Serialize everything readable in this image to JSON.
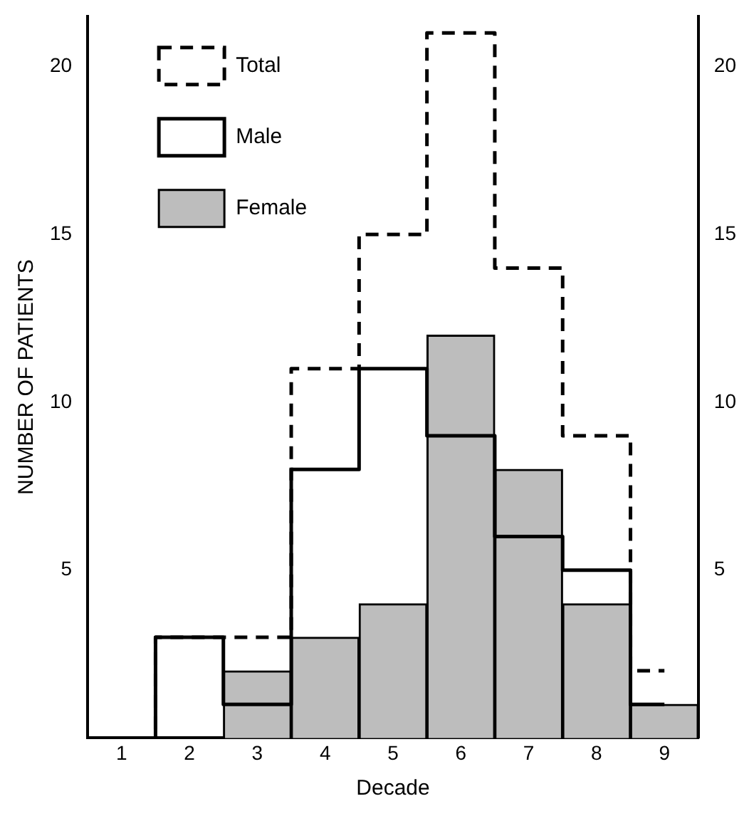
{
  "chart_data": {
    "type": "bar",
    "xlabel": "Decade",
    "ylabel": "NUMBER OF PATIENTS",
    "categories": [
      "1",
      "2",
      "3",
      "4",
      "5",
      "6",
      "7",
      "8",
      "9"
    ],
    "series": [
      {
        "name": "Total",
        "type": "step",
        "line_style": "dashed",
        "color": "#000000",
        "values": [
          0,
          3,
          3,
          11,
          15,
          21,
          14,
          9,
          2
        ]
      },
      {
        "name": "Male",
        "type": "step",
        "line_style": "solid",
        "color": "#000000",
        "values": [
          0,
          3,
          1,
          8,
          11,
          9,
          6,
          5,
          1
        ]
      },
      {
        "name": "Female",
        "color": "#bdbdbd",
        "values": [
          0,
          0,
          2,
          3,
          4,
          12,
          8,
          4,
          1
        ]
      }
    ],
    "ylim": [
      0,
      21.5
    ],
    "yticks": [
      5,
      10,
      15,
      20
    ],
    "y2lim": [
      0,
      21.5
    ],
    "y2ticks": [
      5,
      10,
      15,
      20
    ],
    "grid": false,
    "legend": "top left"
  }
}
